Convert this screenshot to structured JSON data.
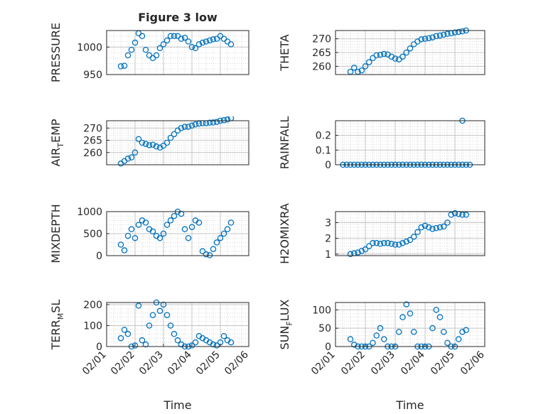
{
  "figure": {
    "title": "Figure 3 low",
    "marker_color": "#0072bd",
    "axes_color": "#262626",
    "grid_color": "#d9d9d9",
    "background": "#ffffff"
  },
  "chart_data": [
    {
      "type": "scatter",
      "ylabel": "PRESSURE",
      "title": "Figure 3 low",
      "xlim": [
        "02/01",
        "02/06"
      ],
      "ylim": [
        950,
        1030
      ],
      "yticks": [
        950,
        1000
      ],
      "xticks": [],
      "grid": true,
      "minor_grid": true,
      "x": [
        "02/01 12:00",
        "02/01 15:00",
        "02/01 18:00",
        "02/01 21:00",
        "02/02 00:00",
        "02/02 03:00",
        "02/02 06:00",
        "02/02 09:00",
        "02/02 12:00",
        "02/02 15:00",
        "02/02 18:00",
        "02/02 21:00",
        "02/03 00:00",
        "02/03 03:00",
        "02/03 06:00",
        "02/03 09:00",
        "02/03 12:00",
        "02/03 15:00",
        "02/03 18:00",
        "02/03 21:00",
        "02/04 00:00",
        "02/04 03:00",
        "02/04 06:00",
        "02/04 09:00",
        "02/04 12:00",
        "02/04 15:00",
        "02/04 18:00",
        "02/04 21:00",
        "02/05 00:00",
        "02/05 03:00",
        "02/05 06:00",
        "02/05 09:00"
      ],
      "y": [
        965,
        966,
        985,
        995,
        1008,
        1025,
        1020,
        995,
        985,
        980,
        985,
        998,
        1005,
        1012,
        1020,
        1020,
        1020,
        1015,
        1017,
        1010,
        1000,
        998,
        1005,
        1008,
        1010,
        1012,
        1014,
        1015,
        1020,
        1015,
        1010,
        1005
      ]
    },
    {
      "type": "scatter",
      "ylabel": "THETA",
      "xlim": [
        "02/01",
        "02/06"
      ],
      "ylim": [
        257,
        273
      ],
      "yticks": [
        260,
        265,
        270
      ],
      "xticks": [],
      "grid": true,
      "minor_grid": true,
      "x": [
        "02/01 12:00",
        "02/01 15:00",
        "02/01 18:00",
        "02/01 21:00",
        "02/02 00:00",
        "02/02 03:00",
        "02/02 06:00",
        "02/02 09:00",
        "02/02 12:00",
        "02/02 15:00",
        "02/02 18:00",
        "02/02 21:00",
        "02/03 00:00",
        "02/03 03:00",
        "02/03 06:00",
        "02/03 09:00",
        "02/03 12:00",
        "02/03 15:00",
        "02/03 18:00",
        "02/03 21:00",
        "02/04 00:00",
        "02/04 03:00",
        "02/04 06:00",
        "02/04 09:00",
        "02/04 12:00",
        "02/04 15:00",
        "02/04 18:00",
        "02/04 21:00",
        "02/05 00:00",
        "02/05 03:00",
        "02/05 06:00",
        "02/05 09:00"
      ],
      "y": [
        258,
        259.5,
        258,
        258.5,
        260,
        261.5,
        263,
        264,
        264.2,
        264.5,
        264.3,
        263.5,
        262.8,
        262.5,
        263.5,
        265,
        266.5,
        268,
        269,
        269.8,
        270,
        270.2,
        270.5,
        271,
        271.2,
        271.5,
        271.8,
        272,
        272.3,
        272.5,
        272.7,
        273
      ]
    },
    {
      "type": "scatter",
      "ylabel": "AIR_TEMP",
      "ylabel_parts": {
        "base": "AIR",
        "sub": "T",
        "rest": "EMP"
      },
      "xlim": [
        "02/01",
        "02/06"
      ],
      "ylim": [
        255,
        273
      ],
      "yticks": [
        260,
        265,
        270
      ],
      "xticks": [],
      "grid": true,
      "minor_grid": true,
      "x": [
        "02/01 12:00",
        "02/01 15:00",
        "02/01 18:00",
        "02/01 21:00",
        "02/02 00:00",
        "02/02 03:00",
        "02/02 06:00",
        "02/02 09:00",
        "02/02 12:00",
        "02/02 15:00",
        "02/02 18:00",
        "02/02 21:00",
        "02/03 00:00",
        "02/03 03:00",
        "02/03 06:00",
        "02/03 09:00",
        "02/03 12:00",
        "02/03 15:00",
        "02/03 18:00",
        "02/03 21:00",
        "02/04 00:00",
        "02/04 03:00",
        "02/04 06:00",
        "02/04 09:00",
        "02/04 12:00",
        "02/04 15:00",
        "02/04 18:00",
        "02/04 21:00",
        "02/05 00:00",
        "02/05 03:00",
        "02/05 06:00",
        "02/05 09:00"
      ],
      "y": [
        255.5,
        256.5,
        257.5,
        258,
        260,
        265.5,
        264,
        263.5,
        263,
        263.2,
        262.5,
        262,
        262.8,
        264,
        266,
        267.5,
        269,
        270,
        270.5,
        270.5,
        271,
        271.5,
        271.8,
        272,
        272,
        272.2,
        272.3,
        272.5,
        273,
        273.2,
        273.5,
        274
      ]
    },
    {
      "type": "scatter",
      "ylabel": "RAINFALL",
      "xlim": [
        "02/01",
        "02/06"
      ],
      "ylim": [
        0,
        0.3
      ],
      "yticks": [
        0,
        0.1,
        0.2
      ],
      "xticks": [],
      "grid": true,
      "minor_grid": true,
      "x": [
        "02/01 06:00",
        "02/01 09:00",
        "02/01 12:00",
        "02/01 15:00",
        "02/01 18:00",
        "02/01 21:00",
        "02/02 00:00",
        "02/02 03:00",
        "02/02 06:00",
        "02/02 09:00",
        "02/02 12:00",
        "02/02 15:00",
        "02/02 18:00",
        "02/02 21:00",
        "02/03 00:00",
        "02/03 03:00",
        "02/03 06:00",
        "02/03 09:00",
        "02/03 12:00",
        "02/03 15:00",
        "02/03 18:00",
        "02/03 21:00",
        "02/04 00:00",
        "02/04 03:00",
        "02/04 06:00",
        "02/04 09:00",
        "02/04 12:00",
        "02/04 15:00",
        "02/04 18:00",
        "02/04 21:00",
        "02/05 00:00",
        "02/05 03:00",
        "02/05 06:00",
        "02/05 09:00",
        "02/05 12:00",
        "02/05 06:00"
      ],
      "y": [
        0,
        0,
        0,
        0,
        0,
        0,
        0,
        0,
        0,
        0,
        0,
        0,
        0,
        0,
        0,
        0,
        0,
        0,
        0,
        0,
        0,
        0,
        0,
        0,
        0,
        0,
        0,
        0,
        0,
        0,
        0,
        0,
        0,
        0,
        0,
        0.3
      ]
    },
    {
      "type": "scatter",
      "ylabel": "MIXDEPTH",
      "xlim": [
        "02/01",
        "02/06"
      ],
      "ylim": [
        0,
        1000
      ],
      "yticks": [
        0,
        500,
        1000
      ],
      "xticks": [],
      "grid": true,
      "minor_grid": true,
      "x": [
        "02/01 12:00",
        "02/01 15:00",
        "02/01 18:00",
        "02/01 21:00",
        "02/02 00:00",
        "02/02 03:00",
        "02/02 06:00",
        "02/02 09:00",
        "02/02 12:00",
        "02/02 15:00",
        "02/02 18:00",
        "02/02 21:00",
        "02/03 00:00",
        "02/03 03:00",
        "02/03 06:00",
        "02/03 09:00",
        "02/03 12:00",
        "02/03 15:00",
        "02/03 18:00",
        "02/03 21:00",
        "02/04 00:00",
        "02/04 03:00",
        "02/04 06:00",
        "02/04 09:00",
        "02/04 12:00",
        "02/04 15:00",
        "02/04 18:00",
        "02/04 21:00",
        "02/05 00:00",
        "02/05 03:00",
        "02/05 06:00",
        "02/05 09:00"
      ],
      "y": [
        250,
        120,
        450,
        600,
        400,
        700,
        800,
        750,
        600,
        550,
        450,
        400,
        500,
        700,
        800,
        900,
        1000,
        950,
        600,
        400,
        650,
        800,
        750,
        100,
        30,
        10,
        150,
        300,
        400,
        500,
        600,
        750
      ]
    },
    {
      "type": "scatter",
      "ylabel": "H2OMIXRA",
      "xlim": [
        "02/01",
        "02/06"
      ],
      "ylim": [
        0.9,
        3.7
      ],
      "yticks": [
        1,
        2,
        3
      ],
      "xticks": [],
      "grid": true,
      "minor_grid": true,
      "x": [
        "02/01 12:00",
        "02/01 15:00",
        "02/01 18:00",
        "02/01 21:00",
        "02/02 00:00",
        "02/02 03:00",
        "02/02 06:00",
        "02/02 09:00",
        "02/02 12:00",
        "02/02 15:00",
        "02/02 18:00",
        "02/02 21:00",
        "02/03 00:00",
        "02/03 03:00",
        "02/03 06:00",
        "02/03 09:00",
        "02/03 12:00",
        "02/03 15:00",
        "02/03 18:00",
        "02/03 21:00",
        "02/04 00:00",
        "02/04 03:00",
        "02/04 06:00",
        "02/04 09:00",
        "02/04 12:00",
        "02/04 15:00",
        "02/04 18:00",
        "02/04 21:00",
        "02/05 00:00",
        "02/05 03:00",
        "02/05 06:00",
        "02/05 09:00"
      ],
      "y": [
        1.0,
        1.05,
        1.1,
        1.2,
        1.3,
        1.5,
        1.7,
        1.7,
        1.65,
        1.7,
        1.7,
        1.65,
        1.6,
        1.6,
        1.7,
        1.8,
        1.9,
        2.1,
        2.4,
        2.7,
        2.8,
        2.7,
        2.6,
        2.65,
        2.7,
        2.75,
        3.0,
        3.5,
        3.6,
        3.55,
        3.5,
        3.5
      ]
    },
    {
      "type": "scatter",
      "ylabel": "TERR_MSL",
      "ylabel_parts": {
        "base": "TERR",
        "sub": "M",
        "rest": "SL"
      },
      "xlim": [
        "02/01",
        "02/06"
      ],
      "xlabel": "Time",
      "ylim": [
        0,
        210
      ],
      "yticks": [
        0,
        100,
        200
      ],
      "xticks": [
        "02/01",
        "02/02",
        "02/03",
        "02/04",
        "02/05",
        "02/06"
      ],
      "grid": true,
      "minor_grid": true,
      "x": [
        "02/01 12:00",
        "02/01 15:00",
        "02/01 18:00",
        "02/01 21:00",
        "02/02 00:00",
        "02/02 03:00",
        "02/02 06:00",
        "02/02 09:00",
        "02/02 12:00",
        "02/02 15:00",
        "02/02 18:00",
        "02/02 21:00",
        "02/03 00:00",
        "02/03 03:00",
        "02/03 06:00",
        "02/03 09:00",
        "02/03 12:00",
        "02/03 15:00",
        "02/03 18:00",
        "02/03 21:00",
        "02/04 00:00",
        "02/04 03:00",
        "02/04 06:00",
        "02/04 09:00",
        "02/04 12:00",
        "02/04 15:00",
        "02/04 18:00",
        "02/04 21:00",
        "02/05 00:00",
        "02/05 03:00",
        "02/05 06:00",
        "02/05 09:00"
      ],
      "y": [
        40,
        80,
        60,
        0,
        5,
        195,
        30,
        10,
        100,
        150,
        210,
        170,
        200,
        150,
        100,
        60,
        30,
        10,
        0,
        0,
        5,
        20,
        50,
        40,
        30,
        20,
        10,
        5,
        20,
        50,
        30,
        20
      ]
    },
    {
      "type": "scatter",
      "ylabel": "SUN_FLUX",
      "ylabel_parts": {
        "base": "SUN",
        "sub": "F",
        "rest": "LUX"
      },
      "xlim": [
        "02/01",
        "02/06"
      ],
      "xlabel": "Time",
      "ylim": [
        0,
        120
      ],
      "yticks": [
        0,
        50,
        100
      ],
      "xticks": [
        "02/01",
        "02/02",
        "02/03",
        "02/04",
        "02/05",
        "02/06"
      ],
      "grid": true,
      "minor_grid": true,
      "x": [
        "02/01 12:00",
        "02/01 15:00",
        "02/01 18:00",
        "02/01 21:00",
        "02/02 00:00",
        "02/02 03:00",
        "02/02 06:00",
        "02/02 09:00",
        "02/02 12:00",
        "02/02 15:00",
        "02/02 18:00",
        "02/02 21:00",
        "02/03 00:00",
        "02/03 03:00",
        "02/03 06:00",
        "02/03 09:00",
        "02/03 12:00",
        "02/03 15:00",
        "02/03 18:00",
        "02/03 21:00",
        "02/04 00:00",
        "02/04 03:00",
        "02/04 06:00",
        "02/04 09:00",
        "02/04 12:00",
        "02/04 15:00",
        "02/04 18:00",
        "02/04 21:00",
        "02/05 00:00",
        "02/05 03:00",
        "02/05 06:00",
        "02/05 09:00"
      ],
      "y": [
        20,
        5,
        0,
        0,
        0,
        0,
        10,
        30,
        50,
        20,
        0,
        0,
        0,
        40,
        80,
        115,
        90,
        40,
        0,
        0,
        0,
        0,
        50,
        100,
        80,
        40,
        10,
        0,
        0,
        20,
        40,
        45
      ]
    }
  ]
}
